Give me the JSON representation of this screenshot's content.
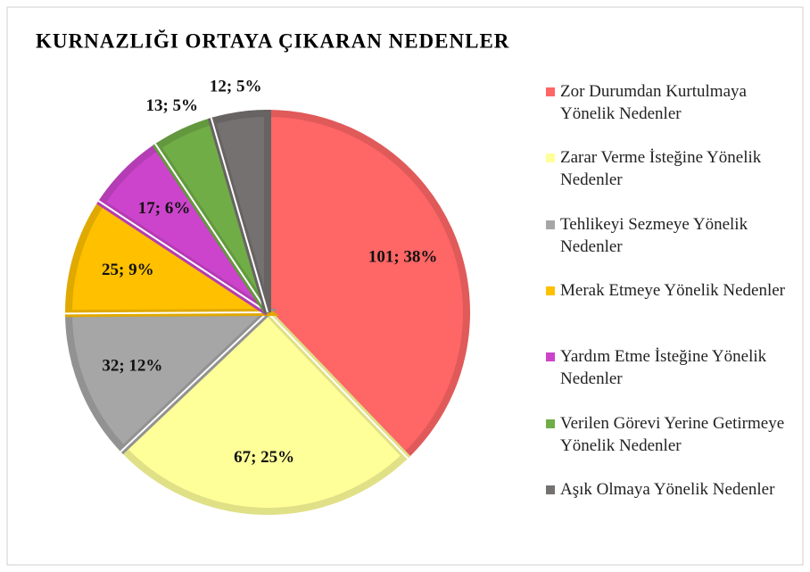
{
  "chart_data": {
    "type": "pie",
    "title": "KURNAZLIĞI ORTAYA ÇIKARAN NEDENLER",
    "categories": [
      "Zor Durumdan Kurtulmaya Yönelik Nedenler",
      "Zarar Verme İsteğine Yönelik Nedenler",
      "Tehlikeyi Sezmeye Yönelik Nedenler",
      "Merak Etmeye Yönelik Nedenler",
      "Yardım Etme İsteğine Yönelik Nedenler",
      "Verilen Görevi Yerine Getirmeye Yönelik Nedenler",
      "Aşık Olmaya Yönelik Nedenler"
    ],
    "values": [
      101,
      67,
      32,
      25,
      17,
      13,
      12
    ],
    "value_labels": [
      "101; 38%",
      "67; 25%",
      "32; 12%",
      "25; 9%",
      "17; 6%",
      "13; 5%",
      "12; 5%"
    ],
    "colors": [
      "#ff6666",
      "#ffff99",
      "#a6a6a6",
      "#ffc000",
      "#cc44cc",
      "#70ad47",
      "#767171"
    ],
    "legend": "right"
  }
}
